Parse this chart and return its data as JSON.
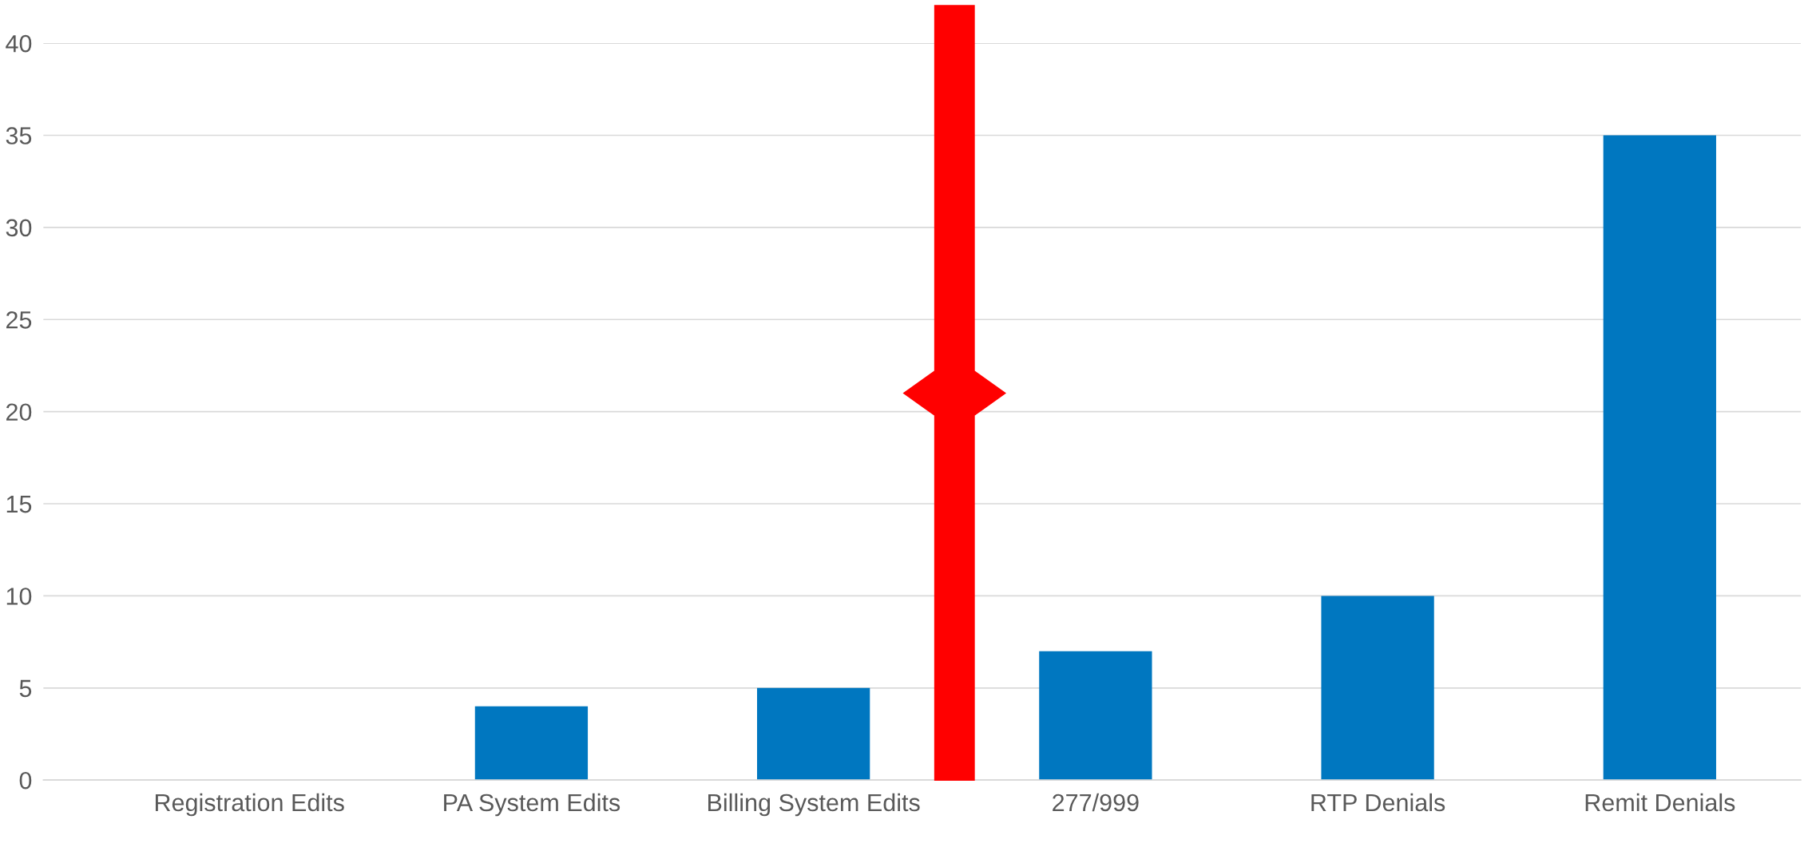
{
  "chart_data": {
    "type": "bar",
    "categories": [
      "Registration Edits",
      "PA System Edits",
      "Billing System Edits",
      "277/999",
      "RTP Denials",
      "Remit Denials"
    ],
    "values": [
      0,
      4,
      5,
      7,
      10,
      35
    ],
    "color": "#0077c0",
    "ylim": [
      0,
      40
    ],
    "yticks": [
      0,
      5,
      10,
      15,
      20,
      25,
      30,
      35,
      40
    ],
    "grid": "y"
  }
}
